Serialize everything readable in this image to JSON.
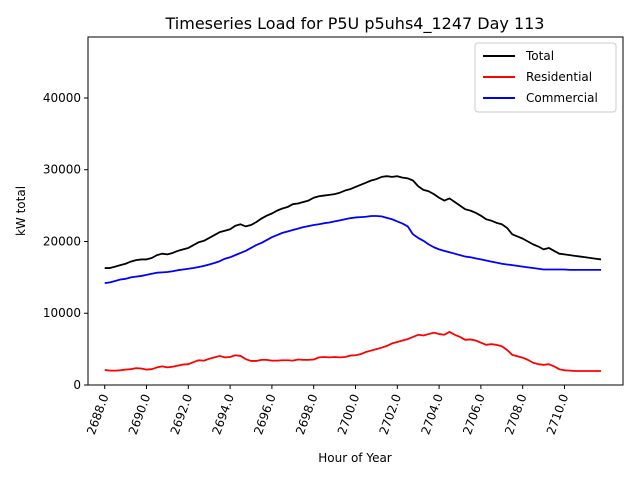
{
  "chart_data": {
    "type": "line",
    "title": "Timeseries Load for P5U p5uhs4_1247  Day 113",
    "xlabel": "Hour of Year",
    "ylabel": "kW total",
    "xlim": [
      2687.2,
      2712.8
    ],
    "ylim": [
      0,
      48500
    ],
    "x_ticks": [
      2688,
      2690,
      2692,
      2694,
      2696,
      2698,
      2700,
      2702,
      2704,
      2706,
      2708,
      2710
    ],
    "x_tick_labels": [
      "2688.0",
      "2690.0",
      "2692.0",
      "2694.0",
      "2696.0",
      "2698.0",
      "2700.0",
      "2702.0",
      "2704.0",
      "2706.0",
      "2708.0",
      "2710.0"
    ],
    "y_ticks": [
      0,
      10000,
      20000,
      30000,
      40000
    ],
    "y_tick_labels": [
      "0",
      "10000",
      "20000",
      "30000",
      "40000"
    ],
    "legend_position": "top-right",
    "x": [
      2688.0,
      2688.25,
      2688.5,
      2688.75,
      2689.0,
      2689.25,
      2689.5,
      2689.75,
      2690.0,
      2690.25,
      2690.5,
      2690.75,
      2691.0,
      2691.25,
      2691.5,
      2691.75,
      2692.0,
      2692.25,
      2692.5,
      2692.75,
      2693.0,
      2693.25,
      2693.5,
      2693.75,
      2694.0,
      2694.25,
      2694.5,
      2694.75,
      2695.0,
      2695.25,
      2695.5,
      2695.75,
      2696.0,
      2696.25,
      2696.5,
      2696.75,
      2697.0,
      2697.25,
      2697.5,
      2697.75,
      2698.0,
      2698.25,
      2698.5,
      2698.75,
      2699.0,
      2699.25,
      2699.5,
      2699.75,
      2700.0,
      2700.25,
      2700.5,
      2700.75,
      2701.0,
      2701.25,
      2701.5,
      2701.75,
      2702.0,
      2702.25,
      2702.5,
      2702.75,
      2703.0,
      2703.25,
      2703.5,
      2703.75,
      2704.0,
      2704.25,
      2704.5,
      2704.75,
      2705.0,
      2705.25,
      2705.5,
      2705.75,
      2706.0,
      2706.25,
      2706.5,
      2706.75,
      2707.0,
      2707.25,
      2707.5,
      2707.75,
      2708.0,
      2708.25,
      2708.5,
      2708.75,
      2709.0,
      2709.25,
      2709.5,
      2709.75,
      2710.0,
      2710.25,
      2710.5,
      2710.75,
      2711.0,
      2711.25,
      2711.5,
      2711.75
    ],
    "series": [
      {
        "name": "Total",
        "color": "#000000",
        "values": [
          16300,
          16300,
          16500,
          16700,
          16900,
          17200,
          17400,
          17500,
          17500,
          17700,
          18100,
          18300,
          18200,
          18400,
          18700,
          18900,
          19100,
          19500,
          19900,
          20100,
          20500,
          20900,
          21300,
          21500,
          21700,
          22200,
          22400,
          22100,
          22300,
          22700,
          23200,
          23600,
          23900,
          24300,
          24600,
          24800,
          25200,
          25300,
          25500,
          25700,
          26100,
          26300,
          26400,
          26500,
          26600,
          26800,
          27100,
          27300,
          27600,
          27900,
          28200,
          28500,
          28700,
          29000,
          29100,
          29000,
          29100,
          28900,
          28800,
          28500,
          27700,
          27200,
          27000,
          26600,
          26100,
          25700,
          26000,
          25500,
          25000,
          24500,
          24300,
          24000,
          23600,
          23100,
          22900,
          22600,
          22400,
          21900,
          21000,
          20700,
          20400,
          20000,
          19600,
          19300,
          18900,
          19100,
          18700,
          18300,
          18200,
          18100,
          18000,
          17900,
          17800,
          17700,
          17600,
          17500
        ]
      },
      {
        "name": "Residential",
        "color": "#ff0000",
        "values": [
          2100,
          2000,
          2000,
          2050,
          2150,
          2200,
          2350,
          2300,
          2150,
          2200,
          2450,
          2600,
          2450,
          2550,
          2700,
          2850,
          2900,
          3200,
          3450,
          3400,
          3650,
          3850,
          4050,
          3850,
          3900,
          4150,
          4050,
          3600,
          3350,
          3350,
          3500,
          3500,
          3400,
          3400,
          3450,
          3450,
          3400,
          3550,
          3500,
          3500,
          3550,
          3850,
          3900,
          3850,
          3900,
          3850,
          3900,
          4100,
          4150,
          4300,
          4600,
          4800,
          5000,
          5200,
          5450,
          5800,
          6000,
          6200,
          6400,
          6700,
          7000,
          6900,
          7100,
          7300,
          7100,
          7000,
          7400,
          7000,
          6700,
          6300,
          6350,
          6200,
          5900,
          5600,
          5700,
          5600,
          5400,
          4900,
          4200,
          4000,
          3800,
          3500,
          3100,
          2900,
          2800,
          2900,
          2600,
          2200,
          2050,
          2000,
          1950,
          1950,
          1950,
          1950,
          1950,
          1950
        ]
      },
      {
        "name": "Commercial",
        "color": "#0000ff",
        "values": [
          14200,
          14300,
          14500,
          14700,
          14800,
          15000,
          15100,
          15200,
          15350,
          15500,
          15650,
          15700,
          15750,
          15850,
          16000,
          16100,
          16200,
          16300,
          16450,
          16600,
          16800,
          17000,
          17250,
          17600,
          17800,
          18100,
          18400,
          18700,
          19100,
          19500,
          19800,
          20200,
          20600,
          20900,
          21200,
          21400,
          21600,
          21800,
          22000,
          22150,
          22300,
          22400,
          22550,
          22650,
          22800,
          22950,
          23100,
          23250,
          23350,
          23400,
          23450,
          23550,
          23550,
          23500,
          23300,
          23100,
          22800,
          22500,
          22100,
          21000,
          20500,
          20100,
          19600,
          19200,
          18900,
          18700,
          18500,
          18300,
          18100,
          17900,
          17800,
          17650,
          17500,
          17350,
          17200,
          17050,
          16900,
          16800,
          16700,
          16600,
          16500,
          16400,
          16300,
          16200,
          16100,
          16100,
          16100,
          16100,
          16100,
          16050,
          16050,
          16050,
          16050,
          16050,
          16050,
          16050
        ]
      }
    ]
  }
}
